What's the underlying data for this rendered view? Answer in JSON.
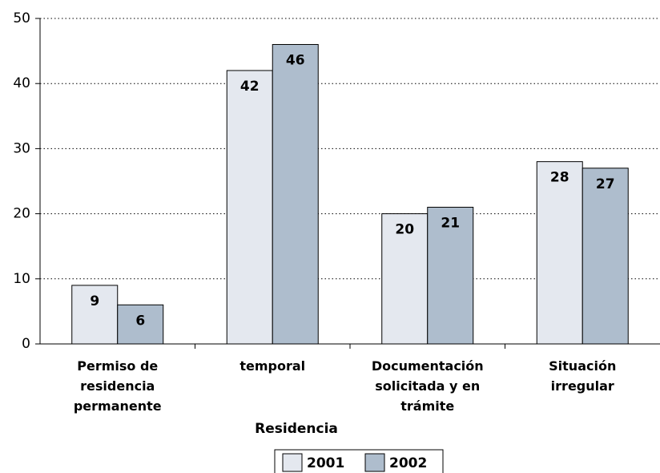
{
  "chart_data": {
    "type": "bar",
    "categories": [
      "Permiso de residencia permanente",
      "temporal",
      "Documentación solicitada y en trámite",
      "Situación irregular"
    ],
    "x_label": "Residencia",
    "series": [
      {
        "name": "2001",
        "color": "#e4e8ef",
        "values": [
          9,
          42,
          20,
          28
        ]
      },
      {
        "name": "2002",
        "color": "#aebdcd",
        "values": [
          6,
          46,
          21,
          27
        ]
      }
    ],
    "ylim": [
      0,
      50
    ],
    "yticks": [
      0,
      10,
      20,
      30,
      40,
      50
    ],
    "grid": true
  }
}
